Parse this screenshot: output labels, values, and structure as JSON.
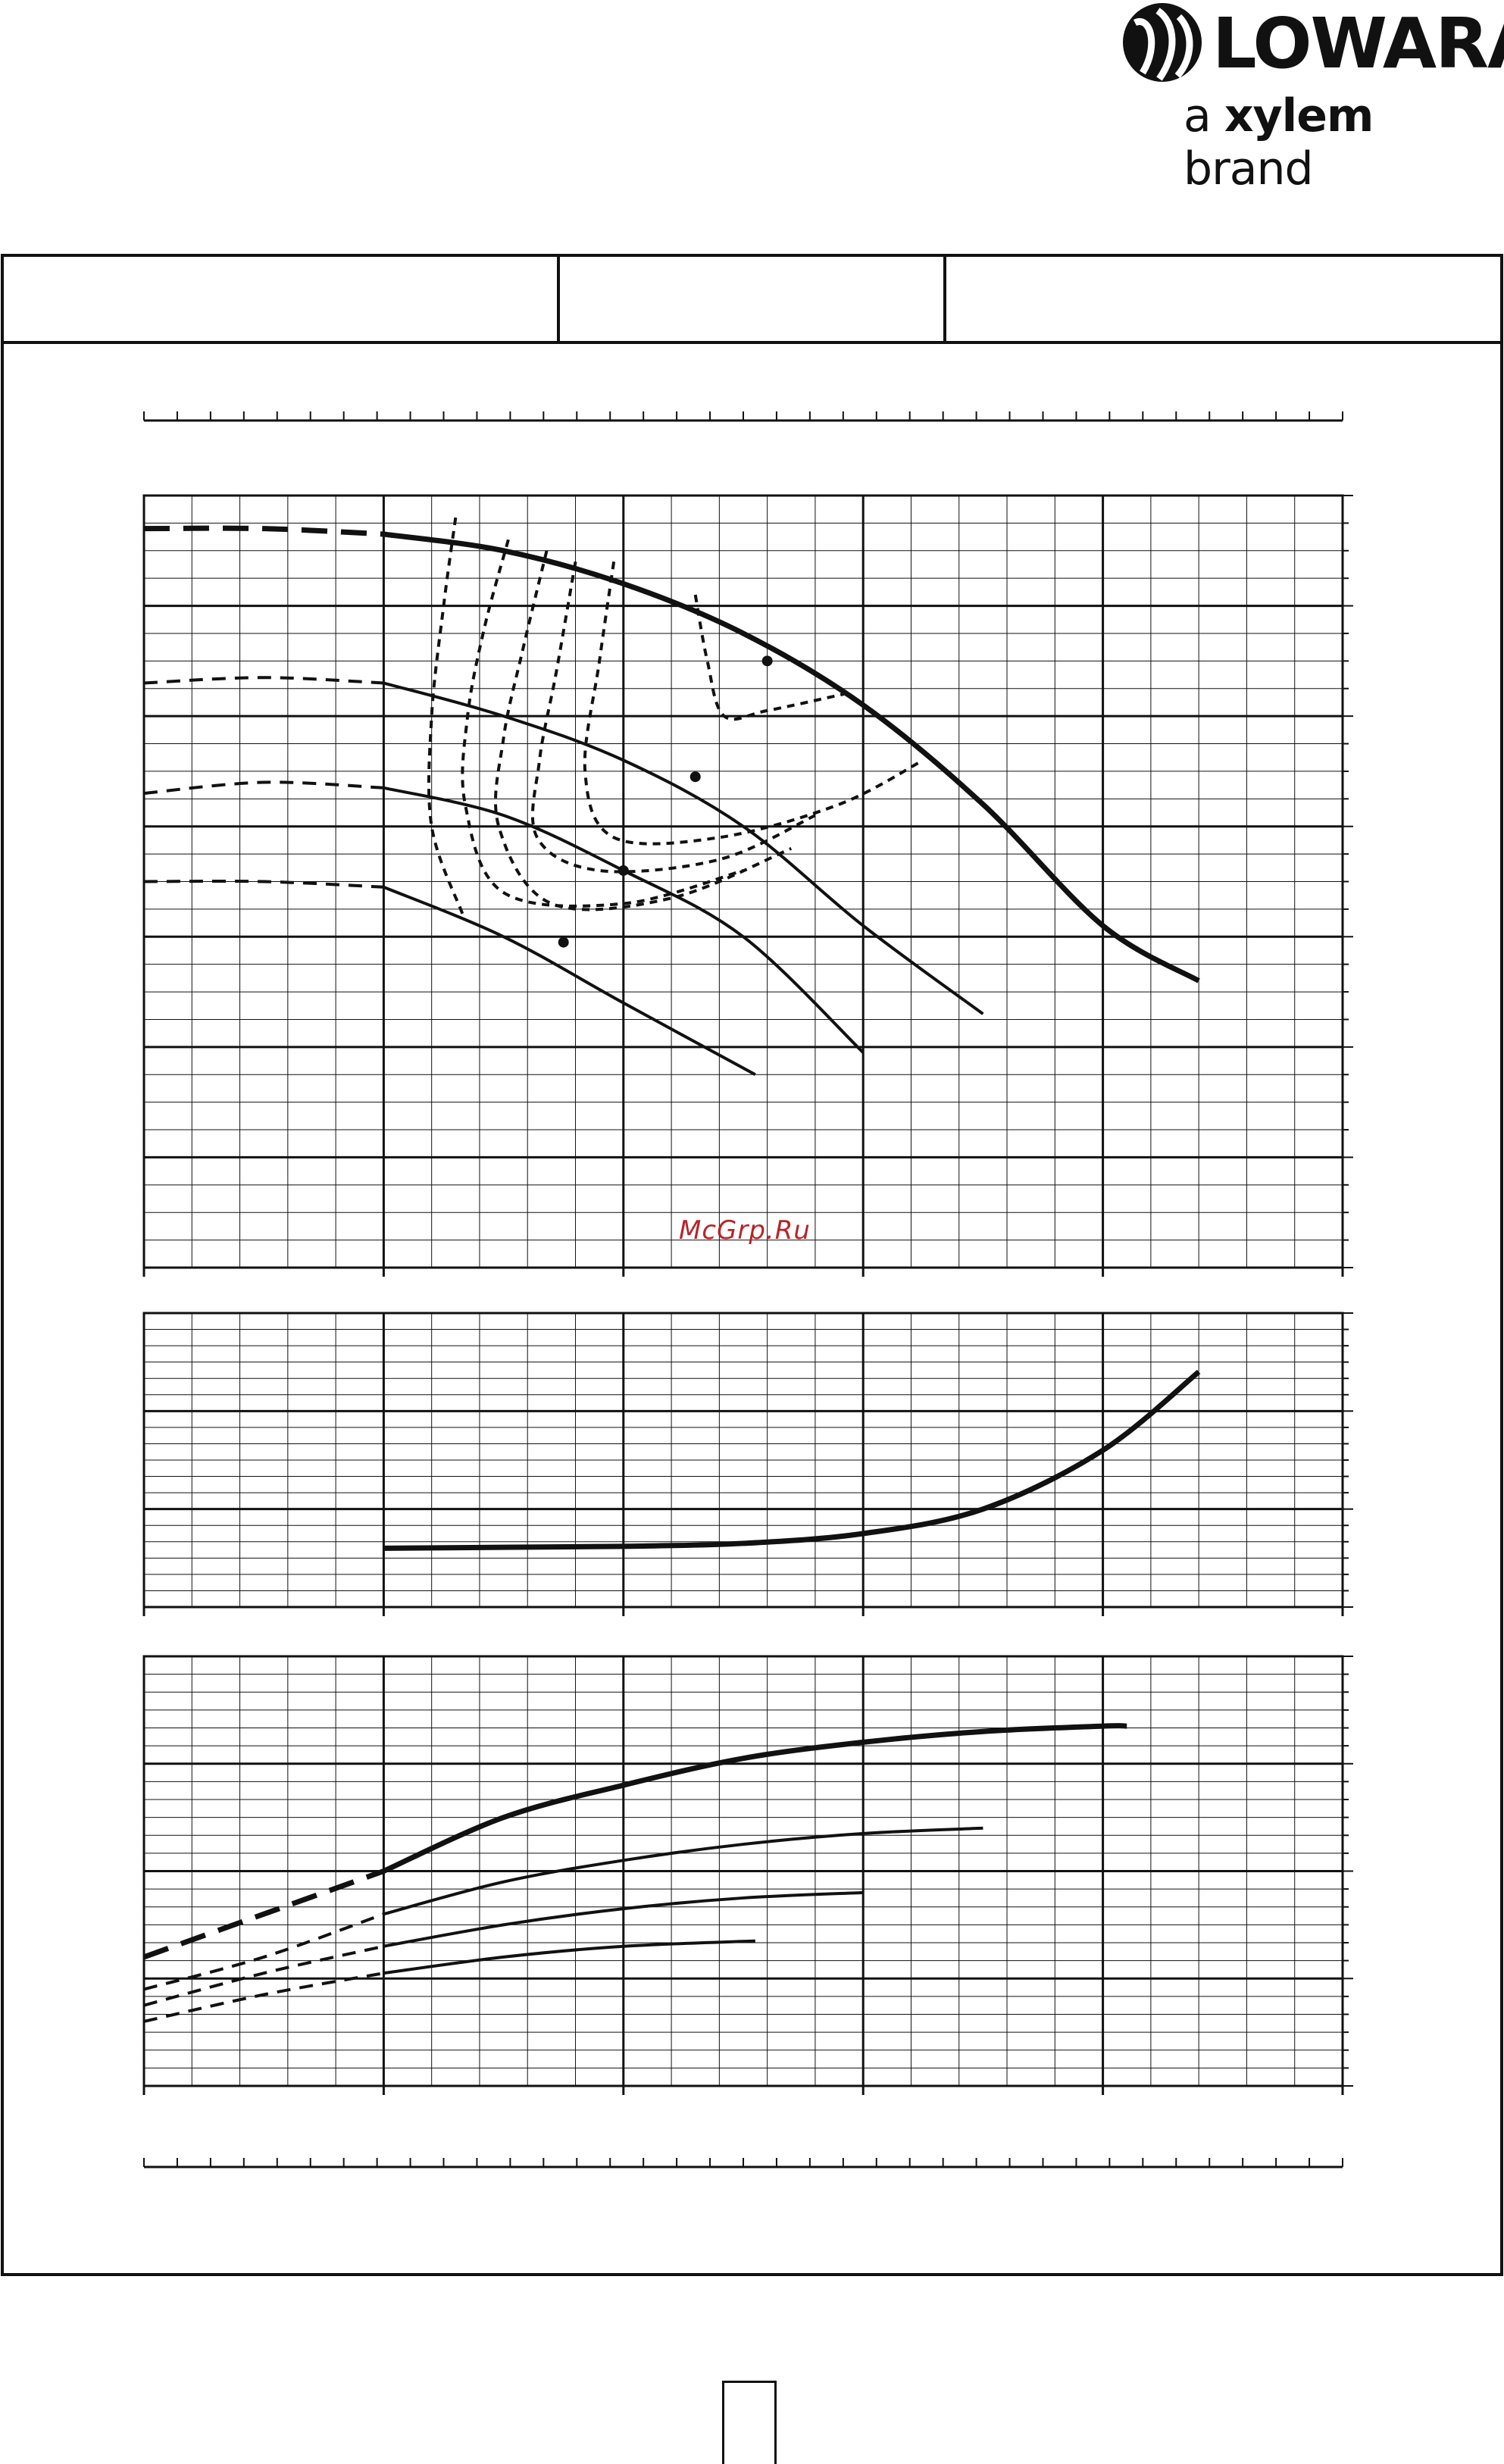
{
  "brand": {
    "name": "LOWARA",
    "tagline_prefix": "a",
    "tagline_brand": "xylem",
    "tagline_suffix": "brand"
  },
  "watermark": "McGrp.Ru",
  "colors": {
    "ink": "#111111",
    "watermark": "#b5262b",
    "background": "#ffffff"
  },
  "chart_data": [
    {
      "type": "line",
      "panel": "head",
      "title": "",
      "xlabel": "",
      "ylabel": "",
      "xlim": [
        0,
        5
      ],
      "ylim": [
        0,
        7
      ],
      "grid": true,
      "series": [
        {
          "name": "",
          "style": "thick",
          "dashed_to_x": 1.0,
          "x": [
            0,
            0.5,
            1.0,
            1.5,
            2.0,
            2.5,
            3.0,
            3.5,
            4.0,
            4.4
          ],
          "y": [
            6.7,
            6.7,
            6.65,
            6.5,
            6.2,
            5.75,
            5.1,
            4.2,
            3.1,
            2.6
          ]
        },
        {
          "name": "",
          "style": "thin",
          "dashed_to_x": 0.9,
          "x": [
            0,
            0.5,
            1.0,
            1.5,
            2.0,
            2.5,
            3.0,
            3.5
          ],
          "y": [
            5.3,
            5.35,
            5.3,
            5.0,
            4.6,
            4.0,
            3.1,
            2.3
          ]
        },
        {
          "name": "",
          "style": "thin",
          "dashed_to_x": 0.7,
          "x": [
            0,
            0.5,
            1.0,
            1.5,
            2.0,
            2.5,
            3.0
          ],
          "y": [
            4.3,
            4.4,
            4.35,
            4.1,
            3.6,
            3.0,
            1.95
          ]
        },
        {
          "name": "",
          "style": "thin",
          "dashed_to_x": 0.6,
          "x": [
            0,
            0.5,
            1.0,
            1.5,
            2.0,
            2.55
          ],
          "y": [
            3.5,
            3.5,
            3.45,
            3.0,
            2.4,
            1.75
          ]
        }
      ],
      "efficiency_contours": [
        {
          "x": [
            1.3,
            1.25,
            1.2,
            1.2,
            1.33
          ],
          "y": [
            6.8,
            6.0,
            5.0,
            4.0,
            3.2
          ]
        },
        {
          "x": [
            1.52,
            1.42,
            1.35,
            1.34,
            1.5,
            2.0,
            2.5
          ],
          "y": [
            6.6,
            5.8,
            5.0,
            4.2,
            3.4,
            3.3,
            3.6
          ]
        },
        {
          "x": [
            1.68,
            1.58,
            1.5,
            1.48,
            1.7,
            2.2,
            2.7
          ],
          "y": [
            6.5,
            5.6,
            4.8,
            4.0,
            3.3,
            3.35,
            3.8
          ]
        },
        {
          "x": [
            1.8,
            1.72,
            1.65,
            1.64,
            1.9,
            2.4,
            2.8
          ],
          "y": [
            6.4,
            5.4,
            4.6,
            3.9,
            3.6,
            3.7,
            4.1
          ]
        },
        {
          "x": [
            1.96,
            1.9,
            1.84,
            1.96,
            2.4,
            2.9,
            3.25
          ],
          "y": [
            6.4,
            5.5,
            4.5,
            3.9,
            3.9,
            4.2,
            4.6
          ]
        },
        {
          "x": [
            2.3,
            2.35,
            2.42,
            2.6,
            2.92
          ],
          "y": [
            6.1,
            5.5,
            5.0,
            5.05,
            5.2
          ]
        }
      ],
      "markers": [
        {
          "x": 2.6,
          "y": 5.5
        },
        {
          "x": 2.3,
          "y": 4.45
        },
        {
          "x": 2.0,
          "y": 3.6
        },
        {
          "x": 1.75,
          "y": 2.95
        }
      ]
    },
    {
      "type": "line",
      "panel": "npsh",
      "title": "",
      "xlabel": "",
      "ylabel": "",
      "xlim": [
        0,
        5
      ],
      "ylim": [
        0,
        3
      ],
      "grid": true,
      "series": [
        {
          "name": "",
          "style": "thick",
          "x": [
            1.0,
            1.5,
            2.0,
            2.5,
            3.0,
            3.5,
            4.0,
            4.4
          ],
          "y": [
            0.6,
            0.61,
            0.62,
            0.65,
            0.75,
            1.0,
            1.6,
            2.4
          ]
        }
      ]
    },
    {
      "type": "line",
      "panel": "power",
      "title": "",
      "xlabel": "",
      "ylabel": "",
      "xlim": [
        0,
        5
      ],
      "ylim": [
        0,
        4
      ],
      "grid": true,
      "series": [
        {
          "name": "",
          "style": "thick",
          "dashed_to_x": 1.0,
          "x": [
            0,
            0.5,
            1.0,
            1.5,
            2.0,
            2.5,
            3.0,
            3.5,
            4.0,
            4.1
          ],
          "y": [
            1.2,
            1.6,
            2.0,
            2.5,
            2.8,
            3.05,
            3.2,
            3.3,
            3.35,
            3.35
          ]
        },
        {
          "name": "",
          "style": "thin",
          "dashed_to_x": 0.85,
          "x": [
            0,
            0.5,
            1.0,
            1.5,
            2.0,
            2.5,
            3.0,
            3.5
          ],
          "y": [
            0.9,
            1.2,
            1.6,
            1.9,
            2.1,
            2.25,
            2.35,
            2.4
          ]
        },
        {
          "name": "",
          "style": "thin",
          "dashed_to_x": 0.7,
          "x": [
            0,
            0.5,
            1.0,
            1.5,
            2.0,
            2.5,
            3.0
          ],
          "y": [
            0.75,
            1.05,
            1.3,
            1.5,
            1.65,
            1.75,
            1.8
          ]
        },
        {
          "name": "",
          "style": "thin",
          "dashed_to_x": 0.6,
          "x": [
            0,
            0.5,
            1.0,
            1.5,
            2.0,
            2.55
          ],
          "y": [
            0.6,
            0.85,
            1.05,
            1.2,
            1.3,
            1.35
          ]
        }
      ]
    }
  ]
}
